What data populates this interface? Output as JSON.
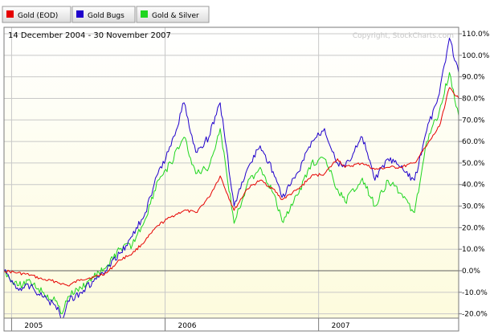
{
  "legend": [
    {
      "label": "Gold (EOD)",
      "color": "#e60000"
    },
    {
      "label": "Gold Bugs",
      "color": "#1f00cc"
    },
    {
      "label": "Gold & Silver",
      "color": "#1fd61f"
    }
  ],
  "date_range": "14 December 2004 - 30 November 2007",
  "copyright": "Copyright, StockCharts.com",
  "chart_data": {
    "type": "line",
    "title": "",
    "xlabel": "",
    "ylabel": "",
    "ylim": [
      -22,
      113
    ],
    "xlim": [
      "2004-12-14",
      "2007-11-30"
    ],
    "y_ticks": [
      -20,
      -10,
      0,
      10,
      20,
      30,
      40,
      50,
      60,
      70,
      80,
      90,
      100,
      110
    ],
    "y_tick_labels": [
      "-20.0%",
      "-10.0%",
      "0.0%",
      "10.0%",
      "20.0%",
      "30.0%",
      "40.0%",
      "50.0%",
      "60.0%",
      "70.0%",
      "80.0%",
      "90.0%",
      "100.0%",
      "110.0%"
    ],
    "x_ticks": [
      "2005-01-01",
      "2006-01-01",
      "2007-01-01"
    ],
    "x_tick_labels": [
      "2005",
      "2006",
      "2007"
    ],
    "grid": true,
    "legend_position": "top-left",
    "x": [
      "2004-12-14",
      "2005-01-15",
      "2005-02-15",
      "2005-03-15",
      "2005-04-15",
      "2005-05-01",
      "2005-05-15",
      "2005-06-15",
      "2005-07-15",
      "2005-08-15",
      "2005-09-15",
      "2005-10-15",
      "2005-11-15",
      "2005-12-15",
      "2006-01-15",
      "2006-02-15",
      "2006-03-15",
      "2006-04-15",
      "2006-05-12",
      "2006-06-14",
      "2006-07-15",
      "2006-08-15",
      "2006-09-15",
      "2006-10-06",
      "2006-11-15",
      "2006-12-15",
      "2007-01-15",
      "2007-02-15",
      "2007-03-05",
      "2007-04-15",
      "2007-05-15",
      "2007-06-15",
      "2007-07-15",
      "2007-08-17",
      "2007-09-15",
      "2007-10-15",
      "2007-11-08",
      "2007-11-30"
    ],
    "series": [
      {
        "name": "Gold (EOD)",
        "color": "#e60000",
        "values": [
          0,
          -1,
          -2,
          -4,
          -5,
          -6,
          -7,
          -4,
          -3,
          -1,
          5,
          8,
          14,
          21,
          25,
          28,
          27,
          34,
          44,
          28,
          38,
          42,
          38,
          33,
          38,
          44,
          45,
          52,
          48,
          50,
          47,
          48,
          48,
          50,
          58,
          67,
          85,
          80
        ]
      },
      {
        "name": "Gold Bugs",
        "color": "#1f00cc",
        "values": [
          0,
          -8,
          -7,
          -12,
          -16,
          -22,
          -14,
          -10,
          -5,
          0,
          8,
          16,
          27,
          45,
          58,
          78,
          55,
          62,
          78,
          30,
          47,
          58,
          46,
          34,
          46,
          60,
          66,
          50,
          48,
          62,
          42,
          52,
          48,
          42,
          65,
          82,
          108,
          92
        ]
      },
      {
        "name": "Gold & Silver",
        "color": "#1fd61f",
        "values": [
          0,
          -7,
          -5,
          -10,
          -14,
          -20,
          -12,
          -8,
          -3,
          2,
          10,
          12,
          24,
          42,
          50,
          62,
          45,
          48,
          66,
          22,
          40,
          48,
          36,
          23,
          36,
          50,
          52,
          38,
          32,
          43,
          30,
          42,
          36,
          27,
          60,
          74,
          92,
          72
        ]
      }
    ]
  }
}
